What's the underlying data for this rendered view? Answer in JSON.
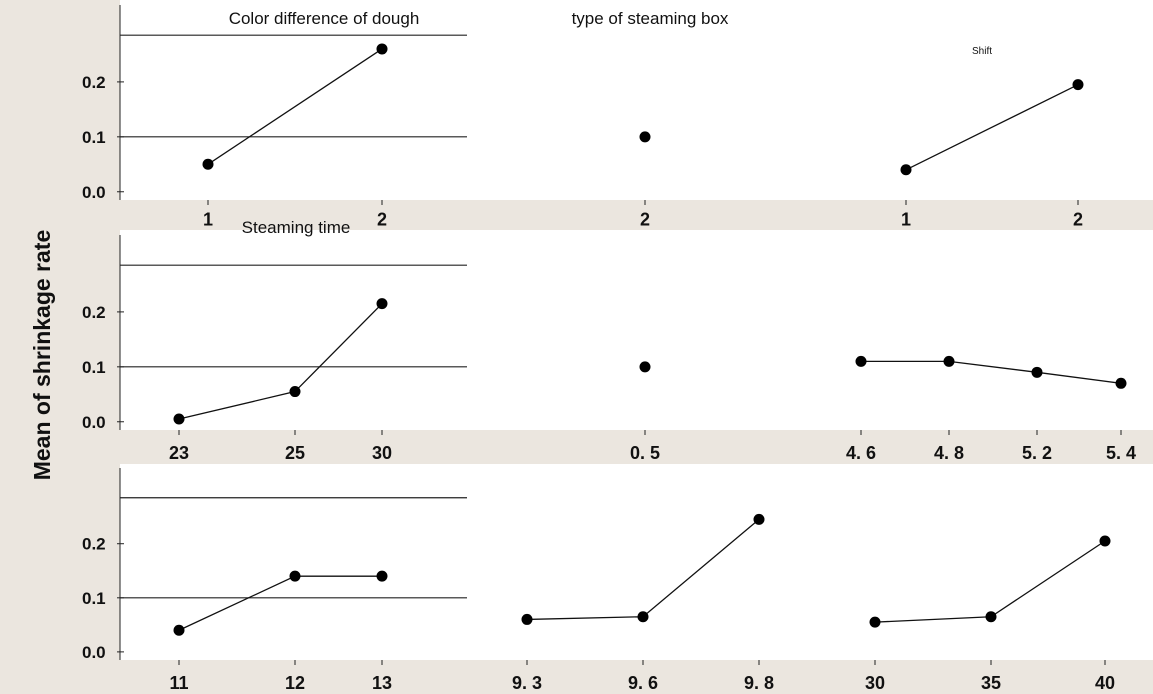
{
  "figure": {
    "ylabel": "Mean of shrinkage rate",
    "colors": {
      "background": "#ffffff",
      "left_strip": "#ebe6df",
      "bottom_band": "#ebe6df",
      "line": "#111111",
      "marker": "#000000",
      "refline": "#222222"
    }
  },
  "chart_data": [
    {
      "type": "line",
      "title": "Color difference of dough",
      "categories": [
        "1",
        "2"
      ],
      "values": [
        0.05,
        0.26
      ],
      "yticks": [
        "0.0",
        "0.1",
        "0.2"
      ],
      "ylim": [
        -0.015,
        0.34
      ],
      "reference_lines": [
        0.1,
        0.285
      ]
    },
    {
      "type": "line",
      "title": "type of steaming box",
      "categories": [
        "2"
      ],
      "values": [
        0.1
      ],
      "ylim": [
        -0.015,
        0.34
      ]
    },
    {
      "type": "line",
      "title": "Shift",
      "categories": [
        "1",
        "2"
      ],
      "values": [
        0.04,
        0.195
      ],
      "ylim": [
        -0.015,
        0.34
      ]
    },
    {
      "type": "line",
      "title": "Steaming time",
      "categories": [
        "23",
        "25",
        "30"
      ],
      "values": [
        0.005,
        0.055,
        0.215
      ],
      "yticks": [
        "0.0",
        "0.1",
        "0.2"
      ],
      "ylim": [
        -0.015,
        0.34
      ],
      "reference_lines": [
        0.1,
        0.285
      ]
    },
    {
      "type": "line",
      "title": "",
      "categories": [
        "0. 5"
      ],
      "values": [
        0.1
      ],
      "ylim": [
        -0.015,
        0.34
      ]
    },
    {
      "type": "line",
      "title": "",
      "categories": [
        "4. 6",
        "4. 8",
        "5. 2",
        "5. 4"
      ],
      "values": [
        0.11,
        0.11,
        0.09,
        0.07
      ],
      "ylim": [
        -0.015,
        0.34
      ]
    },
    {
      "type": "line",
      "title": "",
      "categories": [
        "11",
        "12",
        "13"
      ],
      "values": [
        0.04,
        0.14,
        0.14
      ],
      "yticks": [
        "0.0",
        "0.1",
        "0.2"
      ],
      "ylim": [
        -0.015,
        0.34
      ],
      "reference_lines": [
        0.1,
        0.285
      ]
    },
    {
      "type": "line",
      "title": "",
      "categories": [
        "9. 3",
        "9. 6",
        "9. 8"
      ],
      "values": [
        0.06,
        0.065,
        0.245
      ],
      "ylim": [
        -0.015,
        0.34
      ]
    },
    {
      "type": "line",
      "title": "",
      "categories": [
        "30",
        "35",
        "40"
      ],
      "values": [
        0.055,
        0.065,
        0.205
      ],
      "ylim": [
        -0.015,
        0.34
      ]
    }
  ]
}
